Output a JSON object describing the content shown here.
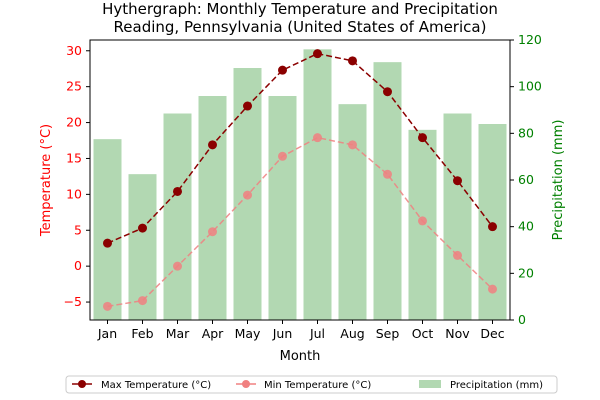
{
  "chart_data": {
    "type": "bar+line",
    "title": "Hythergraph: Monthly Temperature and Precipitation",
    "subtitle": "Reading, Pennsylvania (United States of America)",
    "xlabel": "Month",
    "ylabel_left": "Temperature (°C)",
    "ylabel_right": "Precipitation (mm)",
    "categories": [
      "Jan",
      "Feb",
      "Mar",
      "Apr",
      "May",
      "Jun",
      "Jul",
      "Aug",
      "Sep",
      "Oct",
      "Nov",
      "Dec"
    ],
    "ylim_left": [
      -7.5,
      31.5
    ],
    "yticks_left": [
      -5,
      0,
      5,
      10,
      15,
      20,
      25,
      30
    ],
    "ylim_right": [
      0,
      120
    ],
    "yticks_right": [
      0,
      20,
      40,
      60,
      80,
      100,
      120
    ],
    "grid": false,
    "legend_position": "bottom",
    "series": [
      {
        "name": "Max Temperature (°C)",
        "kind": "line",
        "axis": "left",
        "color": "#8b0000",
        "values": [
          3.2,
          5.3,
          10.4,
          16.9,
          22.3,
          27.3,
          29.6,
          28.6,
          24.3,
          17.9,
          11.9,
          5.5
        ]
      },
      {
        "name": "Min Temperature (°C)",
        "kind": "line",
        "axis": "left",
        "color": "#f08080",
        "values": [
          -5.6,
          -4.8,
          0.0,
          4.8,
          9.9,
          15.3,
          17.9,
          16.9,
          12.8,
          6.3,
          1.5,
          -3.2
        ]
      },
      {
        "name": "Precipitation (mm)",
        "kind": "bar",
        "axis": "right",
        "color": "#b2d8b2",
        "values": [
          77.5,
          62.5,
          88.5,
          96.0,
          108.0,
          96.0,
          116.0,
          92.5,
          110.5,
          81.5,
          88.5,
          84.0
        ]
      }
    ],
    "colors": {
      "left_axis": "#ff0000",
      "right_axis": "#008000"
    }
  }
}
